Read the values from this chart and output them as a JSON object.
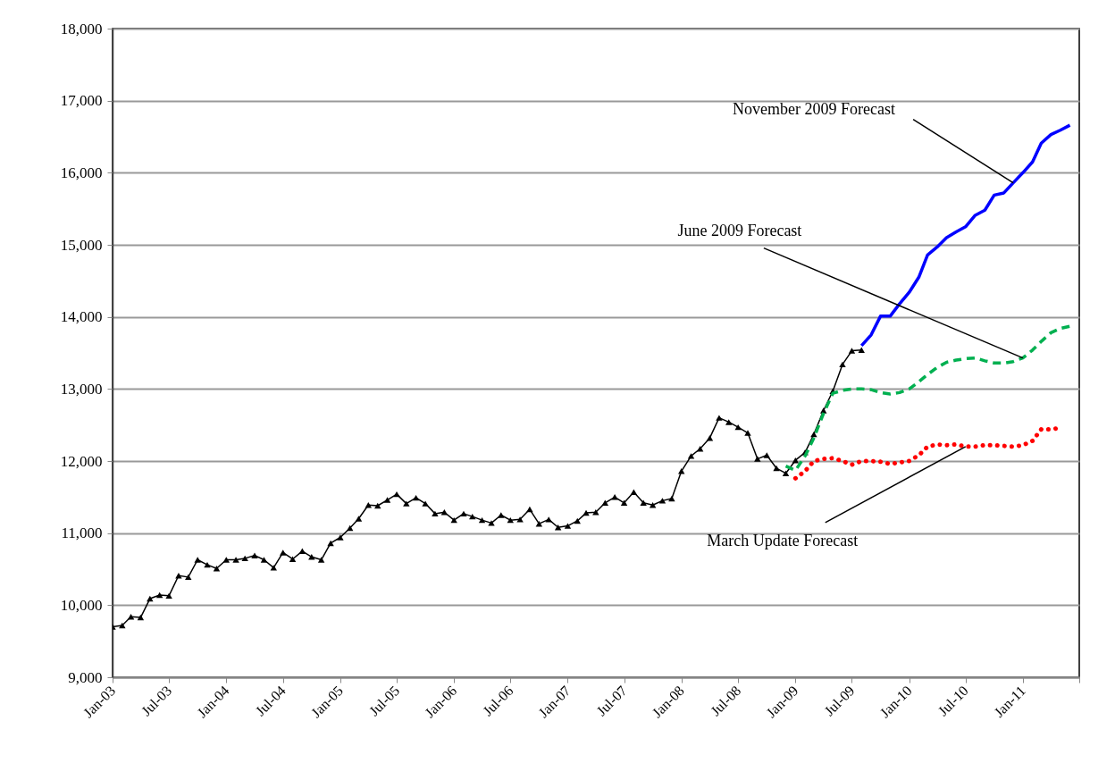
{
  "chart_data": {
    "type": "line",
    "xlim": [
      "2003-01",
      "2011-07"
    ],
    "xticks": [
      {
        "value": "2003-01",
        "label": "Jan-03"
      },
      {
        "value": "2003-07",
        "label": "Jul-03"
      },
      {
        "value": "2004-01",
        "label": "Jan-04"
      },
      {
        "value": "2004-07",
        "label": "Jul-04"
      },
      {
        "value": "2005-01",
        "label": "Jan-05"
      },
      {
        "value": "2005-07",
        "label": "Jul-05"
      },
      {
        "value": "2006-01",
        "label": "Jan-06"
      },
      {
        "value": "2006-07",
        "label": "Jul-06"
      },
      {
        "value": "2007-01",
        "label": "Jan-07"
      },
      {
        "value": "2007-07",
        "label": "Jul-07"
      },
      {
        "value": "2008-01",
        "label": "Jan-08"
      },
      {
        "value": "2008-07",
        "label": "Jul-08"
      },
      {
        "value": "2009-01",
        "label": "Jan-09"
      },
      {
        "value": "2009-07",
        "label": "Jul-09"
      },
      {
        "value": "2010-01",
        "label": "Jan-10"
      },
      {
        "value": "2010-07",
        "label": "Jul-10"
      },
      {
        "value": "2011-01",
        "label": "Jan-11"
      },
      {
        "value": "2011-07",
        "label": null
      }
    ],
    "ylim": [
      9000,
      18000
    ],
    "yticks": [
      {
        "value": 9000,
        "label": "9,000"
      },
      {
        "value": 10000,
        "label": "10,000"
      },
      {
        "value": 11000,
        "label": "11,000"
      },
      {
        "value": 12000,
        "label": "12,000"
      },
      {
        "value": 13000,
        "label": "13,000"
      },
      {
        "value": 14000,
        "label": "14,000"
      },
      {
        "value": 15000,
        "label": "15,000"
      },
      {
        "value": 16000,
        "label": "16,000"
      },
      {
        "value": 17000,
        "label": "17,000"
      },
      {
        "value": 18000,
        "label": "18,000"
      }
    ],
    "grid": "y",
    "series": [
      {
        "color": "#000000",
        "marker": "triangle",
        "line_style": "solid",
        "x": [
          "2003-01",
          "2003-02",
          "2003-03",
          "2003-04",
          "2003-05",
          "2003-06",
          "2003-07",
          "2003-08",
          "2003-09",
          "2003-10",
          "2003-11",
          "2003-12",
          "2004-01",
          "2004-02",
          "2004-03",
          "2004-04",
          "2004-05",
          "2004-06",
          "2004-07",
          "2004-08",
          "2004-09",
          "2004-10",
          "2004-11",
          "2004-12",
          "2005-01",
          "2005-02",
          "2005-03",
          "2005-04",
          "2005-05",
          "2005-06",
          "2005-07",
          "2005-08",
          "2005-09",
          "2005-10",
          "2005-11",
          "2005-12",
          "2006-01",
          "2006-02",
          "2006-03",
          "2006-04",
          "2006-05",
          "2006-06",
          "2006-07",
          "2006-08",
          "2006-09",
          "2006-10",
          "2006-11",
          "2006-12",
          "2007-01",
          "2007-02",
          "2007-03",
          "2007-04",
          "2007-05",
          "2007-06",
          "2007-07",
          "2007-08",
          "2007-09",
          "2007-10",
          "2007-11",
          "2007-12",
          "2008-01",
          "2008-02",
          "2008-03",
          "2008-04",
          "2008-05",
          "2008-06",
          "2008-07",
          "2008-08",
          "2008-09",
          "2008-10",
          "2008-11",
          "2008-12",
          "2009-01",
          "2009-02",
          "2009-03",
          "2009-04",
          "2009-05",
          "2009-06",
          "2009-07",
          "2009-08"
        ],
        "values": [
          9700,
          9720,
          9840,
          9830,
          10090,
          10140,
          10130,
          10410,
          10390,
          10630,
          10560,
          10510,
          10630,
          10630,
          10650,
          10690,
          10630,
          10520,
          10730,
          10640,
          10750,
          10670,
          10630,
          10860,
          10940,
          11070,
          11200,
          11390,
          11380,
          11460,
          11540,
          11410,
          11490,
          11410,
          11270,
          11290,
          11180,
          11270,
          11230,
          11180,
          11140,
          11250,
          11180,
          11190,
          11330,
          11130,
          11190,
          11080,
          11100,
          11170,
          11280,
          11290,
          11420,
          11500,
          11420,
          11570,
          11420,
          11390,
          11450,
          11480,
          11860,
          12070,
          12170,
          12320,
          12600,
          12540,
          12470,
          12390,
          12030,
          12080,
          11900,
          11830,
          12010,
          12120,
          12370,
          12700,
          12970,
          13340,
          13530,
          13540
        ]
      },
      {
        "color": "#0000ff",
        "marker": "none",
        "line_style": "solid",
        "x": [
          "2009-08",
          "2009-09",
          "2009-10",
          "2009-11",
          "2009-12",
          "2010-01",
          "2010-02",
          "2010-03",
          "2010-04",
          "2010-05",
          "2010-06",
          "2010-07",
          "2010-08",
          "2010-09",
          "2010-10",
          "2010-11",
          "2010-12",
          "2011-01",
          "2011-02",
          "2011-03",
          "2011-04",
          "2011-05",
          "2011-06"
        ],
        "values": [
          13600,
          13750,
          14010,
          14010,
          14180,
          14340,
          14550,
          14860,
          14970,
          15100,
          15180,
          15250,
          15410,
          15480,
          15690,
          15720,
          15860,
          16000,
          16150,
          16410,
          16530,
          16590,
          16660
        ]
      },
      {
        "color": "#00b050",
        "marker": "none",
        "line_style": "dashed",
        "x": [
          "2008-12",
          "2009-01",
          "2009-02",
          "2009-03",
          "2009-04",
          "2009-05",
          "2009-06",
          "2009-07",
          "2009-08",
          "2009-09",
          "2009-10",
          "2009-11",
          "2009-12",
          "2010-01",
          "2010-02",
          "2010-03",
          "2010-04",
          "2010-05",
          "2010-06",
          "2010-07",
          "2010-08",
          "2010-09",
          "2010-10",
          "2010-11",
          "2010-12",
          "2011-01",
          "2011-02",
          "2011-03",
          "2011-04",
          "2011-05",
          "2011-06"
        ],
        "values": [
          11930,
          11870,
          12070,
          12320,
          12660,
          12940,
          12980,
          13000,
          13000,
          12990,
          12950,
          12930,
          12950,
          13000,
          13100,
          13200,
          13300,
          13370,
          13400,
          13420,
          13430,
          13390,
          13360,
          13360,
          13380,
          13430,
          13540,
          13660,
          13780,
          13840,
          13870
        ]
      },
      {
        "color": "#ff0000",
        "marker": "none",
        "line_style": "dotted",
        "x": [
          "2009-01",
          "2009-02",
          "2009-03",
          "2009-04",
          "2009-05",
          "2009-06",
          "2009-07",
          "2009-08",
          "2009-09",
          "2009-10",
          "2009-11",
          "2009-12",
          "2010-01",
          "2010-02",
          "2010-03",
          "2010-04",
          "2010-05",
          "2010-06",
          "2010-07",
          "2010-08",
          "2010-09",
          "2010-10",
          "2010-11",
          "2010-12",
          "2011-01",
          "2011-02",
          "2011-03",
          "2011-04",
          "2011-05"
        ],
        "values": [
          11760,
          11860,
          12000,
          12030,
          12040,
          12000,
          11950,
          12000,
          12000,
          11990,
          11960,
          11980,
          12000,
          12080,
          12200,
          12230,
          12220,
          12230,
          12200,
          12200,
          12220,
          12220,
          12210,
          12200,
          12220,
          12280,
          12440,
          12440,
          12460
        ]
      }
    ],
    "annotations": [
      {
        "text": "November  2009 Forecast",
        "x": "2010-12",
        "y": 15860
      },
      {
        "text": "June 2009 Forecast",
        "x": "2011-01",
        "y": 13430
      },
      {
        "text": "March Update Forecast",
        "x": "2010-07",
        "y": 12200
      }
    ]
  }
}
